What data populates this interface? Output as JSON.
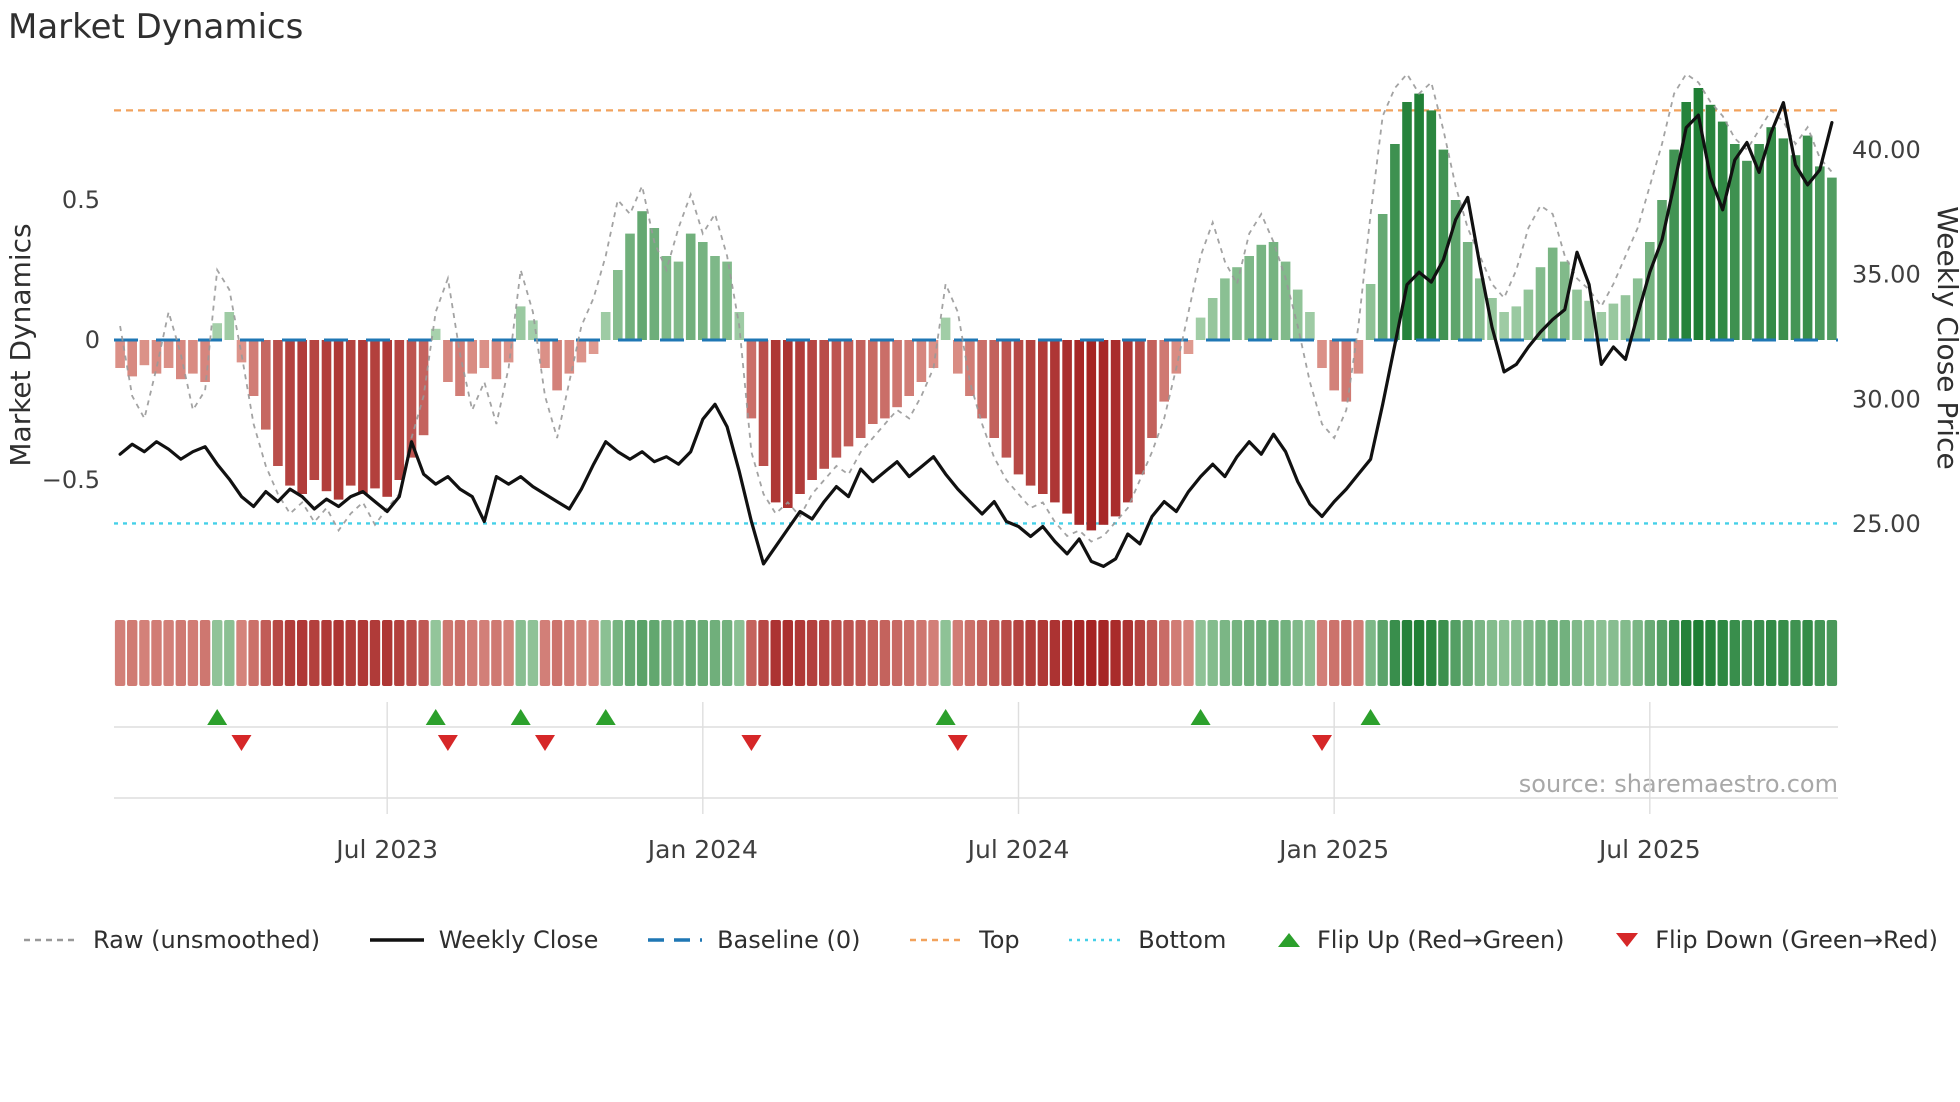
{
  "title": "Market Dynamics",
  "source": "source: sharemaestro.com",
  "axes": {
    "left_label": "Market Dynamics",
    "right_label": "Weekly Close Price",
    "left_ticks": [
      {
        "value": 0.5,
        "label": "0.5"
      },
      {
        "value": 0.0,
        "label": "0"
      },
      {
        "value": -0.5,
        "label": "−0.5"
      }
    ],
    "right_ticks": [
      {
        "value": 40,
        "label": "40.00"
      },
      {
        "value": 35,
        "label": "35.00"
      },
      {
        "value": 30,
        "label": "30.00"
      },
      {
        "value": 25,
        "label": "25.00"
      }
    ],
    "x_ticks": [
      {
        "week": 22,
        "label": "Jul 2023"
      },
      {
        "week": 48,
        "label": "Jan 2024"
      },
      {
        "week": 74,
        "label": "Jul 2024"
      },
      {
        "week": 100,
        "label": "Jan 2025"
      },
      {
        "week": 126,
        "label": "Jul 2025"
      }
    ]
  },
  "colors": {
    "bar_negative_dark": "#a32020",
    "bar_negative_light": "#f2bfb2",
    "bar_positive_dark": "#1e7e34",
    "bar_positive_light": "#cde8cd",
    "weekly_close": "#111111",
    "raw": "#999999",
    "baseline": "#1f77b4",
    "top": "#f2a25c",
    "bottom": "#45d0e8",
    "flip_up": "#2ca02c",
    "flip_down": "#d62728",
    "grid": "#dedede",
    "title_text": "#2f2f2f",
    "tick_text": "#3f3f3f",
    "source_text": "#a8a8a8"
  },
  "legend": [
    {
      "id": "raw",
      "label": "Raw (unsmoothed)"
    },
    {
      "id": "weekly_close",
      "label": "Weekly Close"
    },
    {
      "id": "baseline",
      "label": "Baseline (0)"
    },
    {
      "id": "top",
      "label": "Top"
    },
    {
      "id": "bottom",
      "label": "Bottom"
    },
    {
      "id": "flip_up",
      "label": "Flip Up (Red→Green)"
    },
    {
      "id": "flip_down",
      "label": "Flip Down (Green→Red)"
    }
  ],
  "chart_data": {
    "type": "bar",
    "title": "Market Dynamics",
    "xlabel": "",
    "ylabel_left": "Market Dynamics",
    "ylabel_right": "Weekly Close Price",
    "x_unit": "week",
    "n_points": 142,
    "left_axis_range": [
      -0.95,
      1.0
    ],
    "right_axis_range": [
      23.0,
      42.5
    ],
    "baseline": 0,
    "top_threshold": 0.82,
    "bottom_threshold": -0.655,
    "grid": false,
    "legend_position": "bottom",
    "x_tick_labels": [
      "Jul 2023",
      "Jan 2024",
      "Jul 2024",
      "Jan 2025",
      "Jul 2025"
    ],
    "x_tick_weeks": [
      22,
      48,
      74,
      100,
      126
    ],
    "oscillator": [
      -0.1,
      -0.13,
      -0.09,
      -0.12,
      -0.1,
      -0.14,
      -0.12,
      -0.15,
      0.06,
      0.1,
      -0.08,
      -0.2,
      -0.32,
      -0.45,
      -0.52,
      -0.55,
      -0.5,
      -0.54,
      -0.57,
      -0.52,
      -0.55,
      -0.53,
      -0.56,
      -0.5,
      -0.42,
      -0.34,
      0.04,
      -0.15,
      -0.2,
      -0.12,
      -0.1,
      -0.14,
      -0.08,
      0.12,
      0.07,
      -0.1,
      -0.18,
      -0.12,
      -0.08,
      -0.05,
      0.1,
      0.25,
      0.38,
      0.46,
      0.4,
      0.3,
      0.28,
      0.38,
      0.35,
      0.3,
      0.28,
      0.1,
      -0.28,
      -0.45,
      -0.58,
      -0.6,
      -0.55,
      -0.5,
      -0.46,
      -0.42,
      -0.38,
      -0.35,
      -0.3,
      -0.28,
      -0.24,
      -0.2,
      -0.15,
      -0.1,
      0.08,
      -0.12,
      -0.2,
      -0.28,
      -0.35,
      -0.42,
      -0.48,
      -0.52,
      -0.55,
      -0.58,
      -0.62,
      -0.66,
      -0.68,
      -0.66,
      -0.63,
      -0.58,
      -0.48,
      -0.35,
      -0.22,
      -0.12,
      -0.05,
      0.08,
      0.15,
      0.22,
      0.26,
      0.3,
      0.34,
      0.35,
      0.28,
      0.18,
      0.1,
      -0.1,
      -0.18,
      -0.22,
      -0.12,
      0.2,
      0.45,
      0.7,
      0.85,
      0.88,
      0.82,
      0.68,
      0.5,
      0.35,
      0.22,
      0.15,
      0.1,
      0.12,
      0.18,
      0.26,
      0.33,
      0.28,
      0.18,
      0.14,
      0.1,
      0.13,
      0.16,
      0.22,
      0.35,
      0.5,
      0.68,
      0.85,
      0.9,
      0.84,
      0.78,
      0.7,
      0.64,
      0.7,
      0.76,
      0.72,
      0.66,
      0.73,
      0.62,
      0.58
    ],
    "raw": [
      0.05,
      -0.2,
      -0.28,
      -0.1,
      0.1,
      -0.05,
      -0.25,
      -0.18,
      0.25,
      0.18,
      -0.05,
      -0.3,
      -0.45,
      -0.55,
      -0.62,
      -0.58,
      -0.65,
      -0.6,
      -0.68,
      -0.62,
      -0.58,
      -0.66,
      -0.6,
      -0.55,
      -0.35,
      -0.2,
      0.1,
      0.22,
      -0.05,
      -0.25,
      -0.15,
      -0.3,
      -0.1,
      0.25,
      0.1,
      -0.2,
      -0.35,
      -0.15,
      0.05,
      0.15,
      0.3,
      0.5,
      0.45,
      0.55,
      0.35,
      0.25,
      0.4,
      0.52,
      0.38,
      0.45,
      0.3,
      0.05,
      -0.4,
      -0.55,
      -0.62,
      -0.58,
      -0.63,
      -0.55,
      -0.5,
      -0.45,
      -0.48,
      -0.4,
      -0.35,
      -0.3,
      -0.25,
      -0.28,
      -0.2,
      -0.1,
      0.2,
      0.1,
      -0.15,
      -0.3,
      -0.42,
      -0.5,
      -0.55,
      -0.6,
      -0.58,
      -0.65,
      -0.7,
      -0.68,
      -0.72,
      -0.7,
      -0.65,
      -0.6,
      -0.5,
      -0.4,
      -0.28,
      -0.1,
      0.1,
      0.3,
      0.42,
      0.28,
      0.2,
      0.38,
      0.45,
      0.35,
      0.22,
      0.05,
      -0.15,
      -0.3,
      -0.35,
      -0.25,
      0.05,
      0.45,
      0.8,
      0.9,
      0.95,
      0.88,
      0.92,
      0.75,
      0.55,
      0.4,
      0.3,
      0.2,
      0.15,
      0.25,
      0.4,
      0.48,
      0.45,
      0.3,
      0.22,
      0.18,
      0.12,
      0.2,
      0.3,
      0.4,
      0.55,
      0.7,
      0.88,
      0.95,
      0.92,
      0.85,
      0.8,
      0.72,
      0.68,
      0.75,
      0.82,
      0.78,
      0.7,
      0.76,
      0.65,
      0.6
    ],
    "weekly_close": [
      27.8,
      28.2,
      27.9,
      28.3,
      28.0,
      27.6,
      27.9,
      28.1,
      27.4,
      26.8,
      26.1,
      25.7,
      26.3,
      25.9,
      26.4,
      26.1,
      25.6,
      26.0,
      25.7,
      26.1,
      26.3,
      25.9,
      25.5,
      26.1,
      28.3,
      27.0,
      26.6,
      26.9,
      26.4,
      26.1,
      25.1,
      26.9,
      26.6,
      26.9,
      26.5,
      26.2,
      25.9,
      25.6,
      26.4,
      27.4,
      28.3,
      27.9,
      27.6,
      27.9,
      27.5,
      27.7,
      27.4,
      27.9,
      29.2,
      29.8,
      28.9,
      27.1,
      25.1,
      23.4,
      24.1,
      24.8,
      25.5,
      25.2,
      25.9,
      26.5,
      26.1,
      27.2,
      26.7,
      27.1,
      27.5,
      26.9,
      27.3,
      27.7,
      27.0,
      26.4,
      25.9,
      25.4,
      25.9,
      25.1,
      24.9,
      24.5,
      24.9,
      24.3,
      23.8,
      24.4,
      23.5,
      23.3,
      23.6,
      24.6,
      24.2,
      25.3,
      25.9,
      25.5,
      26.3,
      26.9,
      27.4,
      26.9,
      27.7,
      28.3,
      27.8,
      28.6,
      27.9,
      26.7,
      25.8,
      25.3,
      25.9,
      26.4,
      27.0,
      27.6,
      29.8,
      32.2,
      34.6,
      35.1,
      34.7,
      35.6,
      37.2,
      38.1,
      35.4,
      32.9,
      31.1,
      31.4,
      32.1,
      32.7,
      33.2,
      33.6,
      35.9,
      34.6,
      31.4,
      32.1,
      31.6,
      33.4,
      35.1,
      36.4,
      38.6,
      40.9,
      41.4,
      38.9,
      37.6,
      39.6,
      40.3,
      39.1,
      40.7,
      41.9,
      39.4,
      38.6,
      39.2,
      41.1
    ],
    "flip_up_weeks": [
      8,
      26,
      33,
      40,
      68,
      89,
      103
    ],
    "flip_down_weeks": [
      10,
      27,
      35,
      52,
      69,
      99
    ],
    "heatmap_source": "oscillator"
  }
}
